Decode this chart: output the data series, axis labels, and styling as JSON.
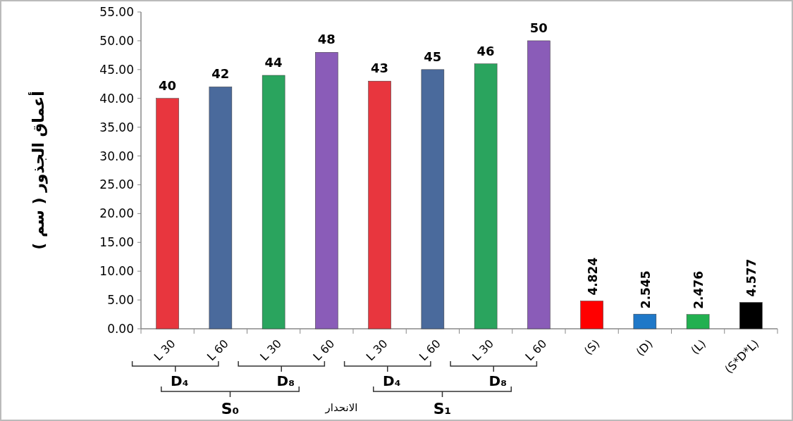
{
  "chart_data": {
    "type": "bar",
    "ylabel": "أعماق الجذور ( سم )",
    "categories": [
      "L 30",
      "L 60",
      "L 30",
      "L 60",
      "L 30",
      "L 60",
      "L 30",
      "L 60",
      "(S)",
      "(D)",
      "(L)",
      "(S*D*L)"
    ],
    "values": [
      40,
      42,
      44,
      48,
      43,
      45,
      46,
      50,
      4.824,
      2.545,
      2.476,
      4.577
    ],
    "colors": [
      "#e8363e",
      "#4a6a9c",
      "#2aa45e",
      "#8a5cb8",
      "#e8363e",
      "#4a6a9c",
      "#2aa45e",
      "#8a5cb8",
      "#ff0000",
      "#1f78c8",
      "#22b050",
      "#000000"
    ],
    "data_labels": true,
    "ylim": [
      0,
      55
    ],
    "yticks": [
      {
        "value": 0,
        "label": "0.00"
      },
      {
        "value": 5,
        "label": "5.00"
      },
      {
        "value": 10,
        "label": "10.00"
      },
      {
        "value": 15,
        "label": "15.00"
      },
      {
        "value": 20,
        "label": "20.00"
      },
      {
        "value": 25,
        "label": "25.00"
      },
      {
        "value": 30,
        "label": "30.00"
      },
      {
        "value": 35,
        "label": "35.00"
      },
      {
        "value": 40,
        "label": "40.00"
      },
      {
        "value": 45,
        "label": "45.00"
      },
      {
        "value": 50,
        "label": "50.00"
      },
      {
        "value": 55,
        "label": "55.00"
      }
    ],
    "grid": false,
    "annotations": [
      "D₄",
      "D₈",
      "D₄",
      "D₈",
      "S₀",
      "S₁",
      "الانحدار"
    ]
  }
}
